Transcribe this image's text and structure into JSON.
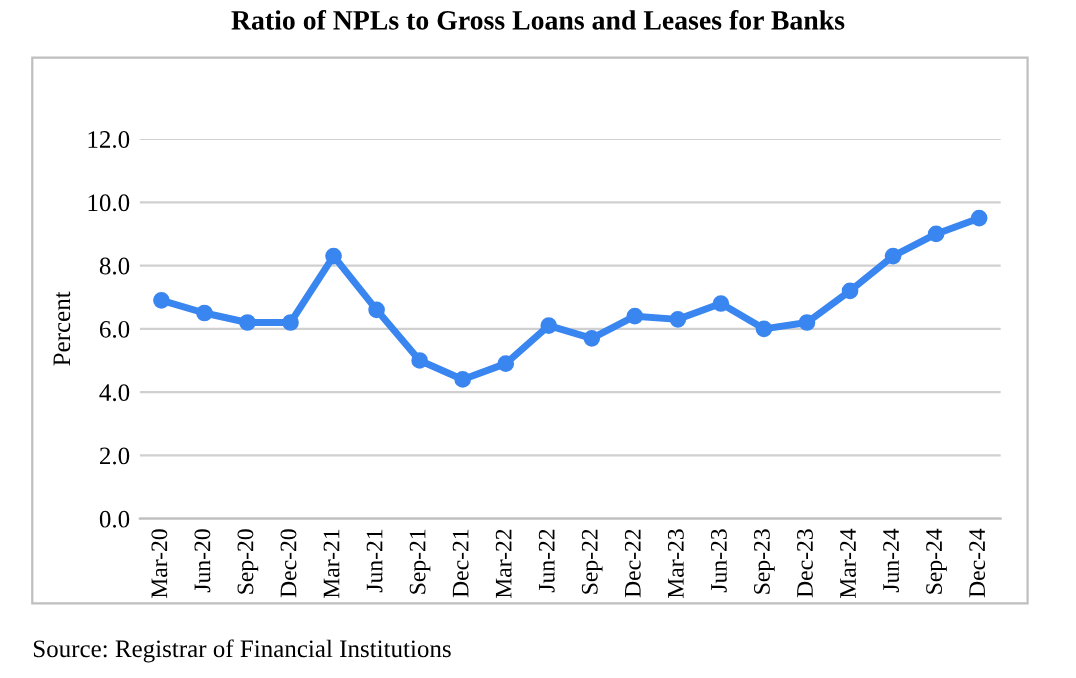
{
  "chart_data": {
    "type": "line",
    "title": "Ratio of NPLs to Gross Loans and Leases for Banks",
    "ylabel": "Percent",
    "categories": [
      "Mar-20",
      "Jun-20",
      "Sep-20",
      "Dec-20",
      "Mar-21",
      "Jun-21",
      "Sep-21",
      "Dec-21",
      "Mar-22",
      "Jun-22",
      "Sep-22",
      "Dec-22",
      "Mar-23",
      "Jun-23",
      "Sep-23",
      "Dec-23",
      "Mar-24",
      "Jun-24",
      "Sep-24",
      "Dec-24"
    ],
    "series": [
      {
        "color": "#3a86f0",
        "values": [
          6.9,
          6.5,
          6.2,
          6.2,
          8.3,
          6.6,
          5.0,
          4.4,
          4.9,
          6.1,
          5.7,
          6.4,
          6.3,
          6.8,
          6.0,
          6.2,
          7.2,
          8.3,
          9.0,
          9.5
        ]
      }
    ],
    "ylim": [
      0,
      12
    ],
    "yticks": [
      {
        "value": 0,
        "label": "0.0"
      },
      {
        "value": 2,
        "label": "2.0"
      },
      {
        "value": 4,
        "label": "4.0"
      },
      {
        "value": 6,
        "label": "6.0"
      },
      {
        "value": 8,
        "label": "8.0"
      },
      {
        "value": 10,
        "label": "10.0"
      },
      {
        "value": 12,
        "label": "12.0"
      }
    ],
    "grid": "y",
    "marker": "circle",
    "line_style": "solid",
    "legend": false,
    "annotations": [
      "Source: Registrar of Financial Institutions"
    ]
  }
}
